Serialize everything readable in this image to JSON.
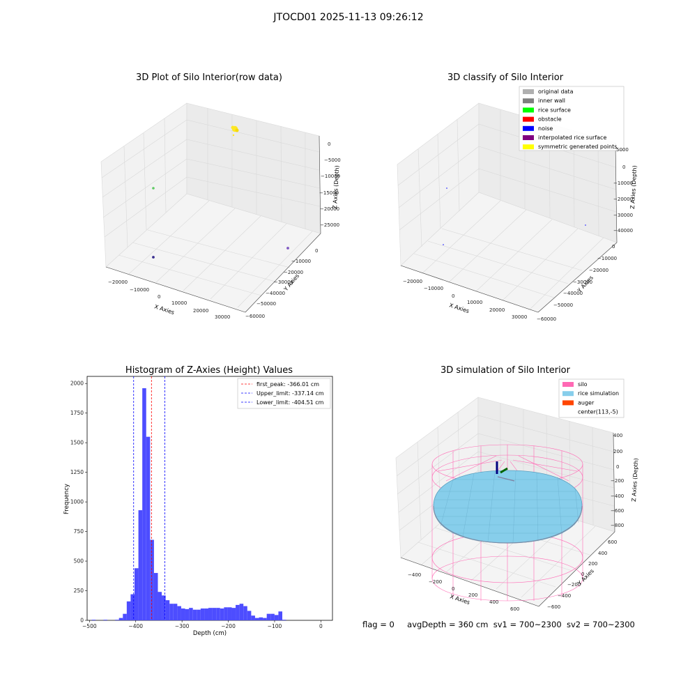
{
  "figure": {
    "title": "JTOCD01 2025-11-13 09:26:12",
    "status": {
      "flag": "flag = 0",
      "avg_depth": "avgDepth = 360 cm",
      "sv1": "sv1 = 700~2300",
      "sv2": "sv2 = 700~2300"
    }
  },
  "chart_data": [
    {
      "type": "scatter",
      "panel": "top-left",
      "title": "3D Plot of Silo Interior(row data)",
      "xlabel": "X Axies",
      "ylabel": "Y Axies",
      "zlabel": "Z Axies (Depth)",
      "x_ticks": [
        "−20000",
        "−10000",
        "0",
        "10000",
        "20000",
        "30000"
      ],
      "y_ticks": [
        "0",
        "−10000",
        "−20000",
        "−30000",
        "−40000",
        "−50000",
        "−60000"
      ],
      "z_ticks": [
        "0",
        "−5000",
        "−10000",
        "−15000",
        "−20000",
        "−25000"
      ],
      "points": [
        {
          "label": "yellow cluster",
          "color": "#fde725"
        },
        {
          "label": "teal point",
          "color": "#5ec962"
        },
        {
          "label": "purple point",
          "color": "#7e57c2"
        },
        {
          "label": "dark point",
          "color": "#3b2f8f"
        }
      ]
    },
    {
      "type": "scatter",
      "panel": "top-right",
      "title": "3D classify of Silo Interior",
      "xlabel": "X Axies",
      "ylabel": "Y Axies",
      "zlabel": "Z Axies (Depth)",
      "x_ticks": [
        "−20000",
        "−10000",
        "0",
        "10000",
        "20000",
        "30000"
      ],
      "y_ticks": [
        "0",
        "−10000",
        "−20000",
        "−30000",
        "−40000",
        "−50000",
        "−60000"
      ],
      "z_ticks": [
        "0",
        "−10000",
        "−20000",
        "−30000",
        "−40000"
      ],
      "z_ticks_partial": [
        "5000"
      ],
      "legend_position": "top-right",
      "legend": [
        {
          "label": "original data",
          "color": "#b0b0b0"
        },
        {
          "label": "inner wall",
          "color": "#808080"
        },
        {
          "label": "rice surface",
          "color": "#00ff00"
        },
        {
          "label": "obstacle",
          "color": "#ff0000"
        },
        {
          "label": "noise",
          "color": "#0000ff"
        },
        {
          "label": "interpolated rice surface",
          "color": "#800080"
        },
        {
          "label": "symmetric generated points",
          "color": "#ffff00"
        }
      ]
    },
    {
      "type": "bar",
      "panel": "bottom-left",
      "title": "Histogram of Z-Axies (Height) Values",
      "xlabel": "Depth (cm)",
      "ylabel": "Frequency",
      "xlim": [
        -505,
        25
      ],
      "ylim": [
        0,
        2060
      ],
      "x_ticks": [
        -500,
        -400,
        -300,
        -200,
        -100,
        0
      ],
      "x_tick_labels": [
        "−500",
        "−400",
        "−300",
        "−200",
        "−100",
        "0"
      ],
      "y_ticks": [
        0,
        250,
        500,
        750,
        1000,
        1250,
        1500,
        1750,
        2000
      ],
      "bar_color": "#4d4dff",
      "bin_start": -495,
      "bin_width": 8.4,
      "values": [
        5,
        0,
        0,
        5,
        0,
        0,
        5,
        20,
        55,
        160,
        220,
        440,
        930,
        1960,
        1550,
        680,
        400,
        240,
        210,
        170,
        140,
        140,
        120,
        100,
        95,
        105,
        90,
        90,
        100,
        100,
        105,
        105,
        105,
        100,
        110,
        110,
        105,
        130,
        140,
        120,
        80,
        40,
        20,
        25,
        20,
        55,
        55,
        45,
        75,
        5
      ],
      "vlines": [
        {
          "label": "first_peak: -366.01 cm",
          "value": -366.01,
          "color": "#ff0000"
        },
        {
          "label": "Upper_limit: -337.14 cm",
          "value": -337.14,
          "color": "#0000ff"
        },
        {
          "label": "Lower_limit: -404.51 cm",
          "value": -404.51,
          "color": "#0000ff"
        }
      ],
      "legend_position": "top-right"
    },
    {
      "type": "scatter",
      "panel": "bottom-right",
      "title": "3D simulation of Silo Interior",
      "xlabel": "X Axies",
      "ylabel": "Y Axies",
      "zlabel": "Z Axies (Depth)",
      "x_ticks": [
        "−400",
        "−200",
        "0",
        "200",
        "400",
        "600"
      ],
      "y_ticks": [
        "600",
        "400",
        "200",
        "0",
        "−200",
        "−400",
        "−600"
      ],
      "z_ticks": [
        "400",
        "200",
        "0",
        "−200",
        "−400",
        "−600",
        "−800"
      ],
      "legend_position": "top-right",
      "legend": [
        {
          "label": "silo",
          "color": "#ff69b4"
        },
        {
          "label": "rice simulation",
          "color": "#87ceeb"
        },
        {
          "label": "auger",
          "color": "#ff4500"
        },
        {
          "label": "center(113,-5)",
          "color": ""
        }
      ]
    }
  ]
}
